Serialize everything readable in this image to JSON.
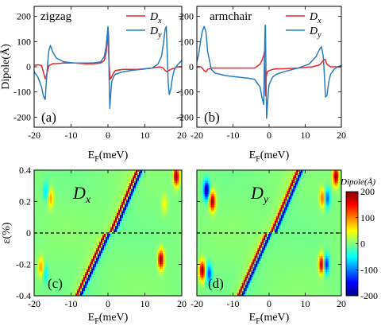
{
  "chart_data": [
    {
      "id": "a",
      "type": "line",
      "panel_label": "(a)",
      "title": "zigzag",
      "xlabel_main": "E",
      "xlabel_sub": "F",
      "xlabel_unit": "(meV)",
      "ylabel": "Dipole(Å)",
      "xlim": [
        -20,
        20
      ],
      "ylim": [
        -240,
        240
      ],
      "xticks": [
        -20,
        -10,
        0,
        10,
        20
      ],
      "yticks": [
        -200,
        -100,
        0,
        100,
        200
      ],
      "legend": "top-right",
      "series": [
        {
          "name_main": "D",
          "name_sub": "x",
          "color": "#e8262b",
          "x": [
            -20,
            -19,
            -18,
            -17.5,
            -17,
            -16.5,
            -16,
            -15,
            -12,
            -9,
            -6,
            -4,
            -2,
            -1,
            -0.5,
            0,
            0.3,
            0.6,
            1,
            1.5,
            2,
            4,
            8,
            12,
            14,
            15,
            15.5,
            16,
            16.5,
            17,
            18,
            19,
            20
          ],
          "y": [
            5,
            8,
            5,
            -20,
            -48,
            -25,
            5,
            12,
            15,
            15,
            12,
            12,
            15,
            25,
            55,
            130,
            10,
            -50,
            -40,
            -25,
            -15,
            -10,
            -10,
            -5,
            0,
            -5,
            -15,
            -20,
            -15,
            -10,
            -5,
            0,
            0
          ]
        },
        {
          "name_main": "D",
          "name_sub": "y",
          "color": "#2a7dc0",
          "x": [
            -20,
            -19,
            -18,
            -17.5,
            -17,
            -16.8,
            -16.3,
            -16,
            -15.6,
            -15,
            -14,
            -12,
            -9,
            -6,
            -4,
            -2,
            -1,
            -0.5,
            0,
            0.2,
            0.3,
            0.5,
            0.8,
            1,
            1.5,
            2,
            4,
            6,
            9,
            12,
            13.5,
            14.5,
            15,
            15.5,
            15.8,
            16,
            16.3,
            16.6,
            17,
            17.5,
            18,
            19,
            20
          ],
          "y": [
            -20,
            -40,
            -80,
            -115,
            -130,
            -80,
            20,
            65,
            85,
            60,
            35,
            20,
            15,
            15,
            15,
            20,
            40,
            80,
            160,
            120,
            -30,
            -165,
            -100,
            -60,
            -40,
            -30,
            -20,
            -15,
            -10,
            -5,
            10,
            40,
            90,
            150,
            160,
            80,
            -60,
            -110,
            -90,
            -40,
            -10,
            10,
            25
          ]
        }
      ]
    },
    {
      "id": "b",
      "type": "line",
      "panel_label": "(b)",
      "title": "armchair",
      "xlabel_main": "E",
      "xlabel_sub": "F",
      "xlabel_unit": "(meV)",
      "xlim": [
        -20,
        20
      ],
      "ylim": [
        -240,
        240
      ],
      "xticks": [
        -20,
        -10,
        0,
        10,
        20
      ],
      "yticks": [
        -200,
        -100,
        0,
        100,
        200
      ],
      "legend": "top-right",
      "series": [
        {
          "name_main": "D",
          "name_sub": "x",
          "color": "#e8262b",
          "x": [
            -20,
            -19,
            -18.5,
            -18,
            -17.5,
            -17,
            -16,
            -14,
            -10,
            -6,
            -4,
            -2.5,
            -2,
            -1.5,
            -1.3,
            -1,
            -0.8,
            -0.5,
            0,
            1,
            2,
            4,
            8,
            12,
            14,
            15,
            15.5,
            16,
            17,
            18,
            19,
            20
          ],
          "y": [
            0,
            0,
            -5,
            -15,
            -20,
            -10,
            -5,
            -5,
            -5,
            -5,
            -5,
            10,
            25,
            45,
            60,
            -115,
            -40,
            -20,
            -15,
            -10,
            -8,
            -8,
            -5,
            0,
            8,
            25,
            30,
            10,
            0,
            0,
            0,
            0
          ],
          "color_note": ""
        },
        {
          "name_main": "D",
          "name_sub": "y",
          "color": "#2a7dc0",
          "x": [
            -20,
            -19.5,
            -19,
            -18.5,
            -18,
            -17.5,
            -17,
            -16,
            -15,
            -12,
            -9,
            -6,
            -4,
            -2.5,
            -2,
            -1.5,
            -1.3,
            -1.1,
            -1,
            -0.7,
            -0.3,
            0,
            1,
            2,
            4,
            8,
            11,
            13,
            14,
            14.5,
            15,
            15.3,
            15.6,
            16,
            16.5,
            17,
            18,
            19,
            20
          ],
          "y": [
            20,
            50,
            100,
            140,
            160,
            140,
            60,
            -10,
            -25,
            -35,
            -40,
            -45,
            -50,
            -80,
            -120,
            -150,
            30,
            160,
            165,
            -205,
            -120,
            -70,
            -40,
            -30,
            -20,
            -5,
            10,
            40,
            70,
            80,
            40,
            -30,
            -120,
            -115,
            -60,
            -30,
            -10,
            0,
            5
          ]
        }
      ]
    },
    {
      "id": "c",
      "type": "heatmap",
      "panel_label": "(c)",
      "annotation_main": "D",
      "annotation_sub": "x",
      "annotation_color": "#e8262b",
      "xlabel_main": "E",
      "xlabel_sub": "F",
      "xlabel_unit": "(meV)",
      "ylabel": "ε(%)",
      "xlim": [
        -20,
        20
      ],
      "ylim": [
        -0.4,
        0.4
      ],
      "xticks": [
        -20,
        -10,
        0,
        10,
        20
      ],
      "yticks": [
        -0.4,
        -0.2,
        0,
        0.2,
        0.4
      ],
      "dashed_line_y": 0,
      "features": [
        {
          "kind": "diag_stripe",
          "y_range": [
            0.02,
            0.4
          ],
          "x_at_ymin": 1.5,
          "x_at_ymax": 8.5,
          "amplitude": 200,
          "polarity": "positive-left"
        },
        {
          "kind": "diag_stripe",
          "y_range": [
            -0.4,
            -0.02
          ],
          "x_at_ymin": -8.0,
          "x_at_ymax": -0.5,
          "amplitude": 200,
          "polarity": "positive-left"
        },
        {
          "kind": "lobe",
          "x": -16.8,
          "y": 0.26,
          "amplitude": -60
        },
        {
          "kind": "lobe",
          "x": -15.6,
          "y": 0.22,
          "amplitude": 90
        },
        {
          "kind": "lobe",
          "x": -18.2,
          "y": -0.22,
          "amplitude": 90
        },
        {
          "kind": "lobe",
          "x": -17.0,
          "y": -0.26,
          "amplitude": -50
        },
        {
          "kind": "lobe",
          "x": 14.3,
          "y": -0.17,
          "amplitude": 200
        },
        {
          "kind": "lobe",
          "x": 15.2,
          "y": 0.18,
          "amplitude": 50
        },
        {
          "kind": "lobe",
          "x": 18.5,
          "y": 0.36,
          "amplitude": 200
        }
      ]
    },
    {
      "id": "d",
      "type": "heatmap",
      "panel_label": "(d)",
      "annotation_main": "D",
      "annotation_sub": "y",
      "annotation_color": "#2a7dc0",
      "xlabel_main": "E",
      "xlabel_sub": "F",
      "xlabel_unit": "(meV)",
      "xlim": [
        -20,
        20
      ],
      "ylim": [
        -0.4,
        0.4
      ],
      "xticks": [
        -20,
        -10,
        0,
        10,
        20
      ],
      "yticks": [
        -0.4,
        -0.2,
        0,
        0.2,
        0.4
      ],
      "dashed_line_y": 0,
      "colorbar": {
        "label": "Dipole(Å)",
        "range": [
          -200,
          200
        ],
        "ticks": [
          -200,
          -100,
          0,
          100,
          200
        ],
        "colormap": "jet"
      },
      "features": [
        {
          "kind": "diag_stripe",
          "y_range": [
            0.02,
            0.4
          ],
          "x_at_ymin": 1.5,
          "x_at_ymax": 8.5,
          "amplitude": 200,
          "polarity": "positive-left"
        },
        {
          "kind": "diag_stripe",
          "y_range": [
            -0.4,
            -0.02
          ],
          "x_at_ymin": -8.0,
          "x_at_ymax": -0.5,
          "amplitude": 200,
          "polarity": "positive-left"
        },
        {
          "kind": "lobe",
          "x": -17.3,
          "y": 0.27,
          "amplitude": -200
        },
        {
          "kind": "lobe",
          "x": -15.7,
          "y": 0.2,
          "amplitude": 200
        },
        {
          "kind": "lobe",
          "x": -18.5,
          "y": -0.24,
          "amplitude": 200
        },
        {
          "kind": "lobe",
          "x": -16.6,
          "y": -0.26,
          "amplitude": -120
        },
        {
          "kind": "lobe",
          "x": 14.6,
          "y": -0.2,
          "amplitude": 200
        },
        {
          "kind": "lobe",
          "x": 15.8,
          "y": -0.2,
          "amplitude": -160
        },
        {
          "kind": "lobe",
          "x": 14.8,
          "y": 0.22,
          "amplitude": 120
        },
        {
          "kind": "lobe",
          "x": 16.1,
          "y": 0.22,
          "amplitude": -120
        },
        {
          "kind": "lobe",
          "x": 18.5,
          "y": 0.36,
          "amplitude": 200
        }
      ]
    }
  ]
}
